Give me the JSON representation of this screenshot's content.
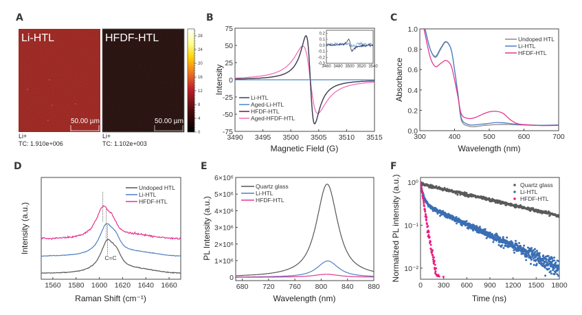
{
  "chart_data": [
    {
      "id": "A",
      "type": "heatmap",
      "panel_label": "A",
      "images": [
        {
          "title": "Li-HTL",
          "scale_bar": "50.00 µm",
          "ion": "Li+",
          "total_counts": "TC: 1.910e+006",
          "base_color": "#8a1612"
        },
        {
          "title": "HFDF-HTL",
          "scale_bar": "50.00 µm",
          "ion": "Li+",
          "total_counts": "TC: 1.102e+003",
          "base_color": "#140706"
        }
      ],
      "colorbar": {
        "ticks": [
          "0",
          "4",
          "8",
          "12",
          "16",
          "20",
          "24",
          "28"
        ],
        "range": [
          0,
          30
        ],
        "colors": [
          "#000000",
          "#5a0c0c",
          "#c0202a",
          "#f07820",
          "#ffd000",
          "#ffff80",
          "#ffffff"
        ]
      }
    },
    {
      "id": "B",
      "type": "line",
      "panel_label": "B",
      "xlabel": "Magnetic Field (G)",
      "ylabel": "Intensity",
      "xlim": [
        3490,
        3515
      ],
      "ylim": [
        -75,
        75
      ],
      "xticks": [
        "3490",
        "3495",
        "3500",
        "3505",
        "3510",
        "3515"
      ],
      "yticks": [
        "-75",
        "-50",
        "-25",
        "0",
        "25",
        "50",
        "75"
      ],
      "legend_position": "bottom-left",
      "series": [
        {
          "name": "Li-HTL",
          "color": "#3a3f55",
          "center": 3503.5,
          "amplitude": 64,
          "width": 1.1,
          "tail": "sharp"
        },
        {
          "name": "Aged-Li-HTL",
          "color": "#4a86c5",
          "center": 3503.5,
          "amplitude": 0,
          "width": 1.1,
          "tail": "flat"
        },
        {
          "name": "HFDF-HTL",
          "color": "#6e1a3c",
          "center": 3503.5,
          "amplitude": 64,
          "width": 1.1,
          "tail": "sharp"
        },
        {
          "name": "Aged-HFDF-HTL",
          "color": "#ee6fb5",
          "center": 3503.5,
          "amplitude": 49,
          "width": 1.9,
          "tail": "broad"
        }
      ],
      "inset": {
        "xlim": [
          3460,
          3540
        ],
        "ylim": [
          -0.3,
          0.25
        ],
        "xticks": [
          "3460",
          "3480",
          "3500",
          "3520",
          "3540"
        ],
        "yticks": [
          "-0.3",
          "-0.2",
          "-0.1",
          "0.0",
          "0.1",
          "0.2"
        ],
        "series": [
          {
            "name": "Li-HTL",
            "color": "#2b3a5c",
            "center": 3501,
            "amplitude": 0.25
          },
          {
            "name": "Aged-Li-HTL",
            "color": "#7aa6dd",
            "center": 3501,
            "amplitude": 0.02
          }
        ]
      }
    },
    {
      "id": "C",
      "type": "line",
      "panel_label": "C",
      "xlabel": "Wavelength (nm)",
      "ylabel": "Absorbance",
      "xlim": [
        300,
        700
      ],
      "ylim": [
        0,
        1.0
      ],
      "xticks": [
        "300",
        "400",
        "500",
        "600",
        "700"
      ],
      "yticks": [
        "0.0",
        "0.2",
        "0.4",
        "0.6",
        "0.8",
        "1.0"
      ],
      "legend_position": "top-right",
      "x": [
        300,
        315,
        330,
        345,
        360,
        375,
        390,
        400,
        410,
        420,
        440,
        460,
        480,
        500,
        520,
        540,
        560,
        580,
        600,
        650,
        700
      ],
      "series": [
        {
          "name": "Undoped HTL",
          "color": "#8a8a8a",
          "values": [
            1.2,
            1.0,
            0.8,
            0.72,
            0.8,
            0.87,
            0.8,
            0.6,
            0.35,
            0.1,
            0.045,
            0.04,
            0.05,
            0.055,
            0.06,
            0.062,
            0.06,
            0.058,
            0.055,
            0.052,
            0.055
          ]
        },
        {
          "name": "Li-HTL",
          "color": "#4a7fc1",
          "values": [
            1.2,
            1.0,
            0.8,
            0.73,
            0.81,
            0.875,
            0.8,
            0.6,
            0.36,
            0.12,
            0.06,
            0.058,
            0.065,
            0.072,
            0.08,
            0.078,
            0.07,
            0.063,
            0.058,
            0.053,
            0.056
          ]
        },
        {
          "name": "HFDF-HTL",
          "color": "#e3338f",
          "values": [
            1.2,
            0.95,
            0.72,
            0.63,
            0.66,
            0.69,
            0.64,
            0.5,
            0.33,
            0.16,
            0.12,
            0.13,
            0.16,
            0.185,
            0.19,
            0.17,
            0.11,
            0.07,
            0.06,
            0.05,
            0.052
          ]
        }
      ]
    },
    {
      "id": "D",
      "type": "line",
      "panel_label": "D",
      "xlabel": "Raman Shift (cm⁻¹)",
      "ylabel": "Intensity (a.u.)",
      "xlim": [
        1550,
        1670
      ],
      "xticks": [
        "1560",
        "1580",
        "1600",
        "1620",
        "1640",
        "1660"
      ],
      "legend_position": "top-right",
      "annotation": "C=C",
      "series": [
        {
          "name": "Undoped HTL",
          "color": "#555555",
          "peak": 1607,
          "offset": 0.0,
          "height": 1.0
        },
        {
          "name": "Li-HTL",
          "color": "#4a7fc1",
          "peak": 1606,
          "offset": 0.5,
          "height": 0.95
        },
        {
          "name": "HFDF-HTL",
          "color": "#e3338f",
          "peak": 1603,
          "offset": 1.0,
          "height": 0.95
        }
      ]
    },
    {
      "id": "E",
      "type": "line",
      "panel_label": "E",
      "xlabel": "Wavelength (nm)",
      "ylabel": "PL Intensity (a.u.)",
      "xlim": [
        670,
        880
      ],
      "ylim": [
        -200000,
        6000000
      ],
      "xticks": [
        "680",
        "720",
        "760",
        "800",
        "840",
        "880"
      ],
      "yticks": [
        "0",
        "1×10⁶",
        "2×10⁶",
        "3×10⁶",
        "4×10⁶",
        "5×10⁶",
        "6×10⁶"
      ],
      "legend_position": "top-left",
      "series": [
        {
          "name": "Quartz glass",
          "color": "#555555",
          "peak_x": 809,
          "peak_y": 5600000,
          "hwhm": 20
        },
        {
          "name": "Li-HTL",
          "color": "#4a7fc1",
          "peak_x": 810,
          "peak_y": 980000,
          "hwhm": 20
        },
        {
          "name": "HFDF-HTL",
          "color": "#e3338f",
          "peak_x": 808,
          "peak_y": 180000,
          "hwhm": 24
        }
      ]
    },
    {
      "id": "F",
      "type": "scatter",
      "panel_label": "F",
      "xlabel": "Time (ns)",
      "ylabel": "Normalized PL intensity (a.u.)",
      "xlim": [
        0,
        1800
      ],
      "ylim": [
        0.0055,
        1.3
      ],
      "yscale": "log",
      "xticks": [
        "0",
        "300",
        "600",
        "900",
        "1200",
        "1500",
        "1800"
      ],
      "yticks": [
        {
          "value": 1,
          "label": "10⁰"
        },
        {
          "value": 0.1,
          "label": "10⁻¹"
        },
        {
          "value": 0.01,
          "label": "10⁻²"
        }
      ],
      "legend_position": "top-right",
      "series": [
        {
          "name": "Quartz glass",
          "color": "#5a5a5a",
          "tau1": 1050,
          "a1": 0.92,
          "tau2": 0,
          "a2": 0,
          "noise": 0.04,
          "tmax": 1800
        },
        {
          "name": "Li-HTL",
          "color": "#3a6fb5",
          "tau1": 35,
          "a1": 0.55,
          "tau2": 520,
          "a2": 0.33,
          "noise": 0.35,
          "tmax": 1800
        },
        {
          "name": "HFDF-HTL",
          "color": "#ea1c82",
          "tau1": 38,
          "a1": 1.0,
          "tau2": 0,
          "a2": 0,
          "noise": 0.5,
          "tmax": 950
        }
      ]
    }
  ]
}
